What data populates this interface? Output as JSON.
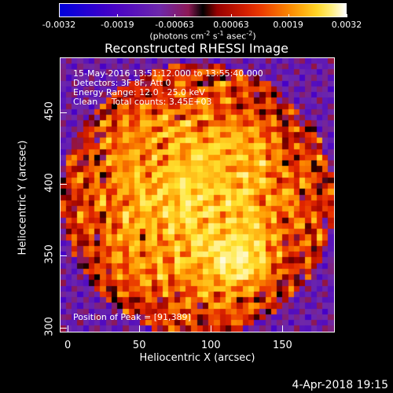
{
  "colorbar": {
    "ticks": [
      "-0.0032",
      "-0.0019",
      "-0.00063",
      "0.00063",
      "0.0019",
      "0.0032"
    ],
    "units_prefix": "(photons cm",
    "units_exp1": "-2",
    "units_mid1": " s",
    "units_exp2": "-1",
    "units_mid2": " asec",
    "units_exp3": "-2",
    "units_suffix": ")"
  },
  "chart_data": {
    "type": "heatmap",
    "title": "Reconstructed RHESSI Image",
    "xlabel": "Heliocentric X (arcsec)",
    "ylabel": "Heliocentric Y (arcsec)",
    "xlim": [
      -5,
      186
    ],
    "ylim": [
      297,
      488
    ],
    "xticks": [
      "0",
      "50",
      "100",
      "150"
    ],
    "yticks": [
      "300",
      "350",
      "400",
      "450"
    ],
    "zlim": [
      -0.0032,
      0.0032
    ],
    "colormap": "rainbow-like: blue-purple-red-orange-yellow-white",
    "peak": [
      91,
      389
    ],
    "annotations": [
      "15-May-2016 13:51:12.000 to 13:55:40.000",
      "Detectors: 3F 8F, Att 0",
      "Energy Range: 12.0 - 25.0 keV",
      "Clean     Total counts: 3.45E+03"
    ],
    "peak_label": "Position of Peak = [91,389]"
  },
  "footer": "4-Apr-2018 19:15"
}
